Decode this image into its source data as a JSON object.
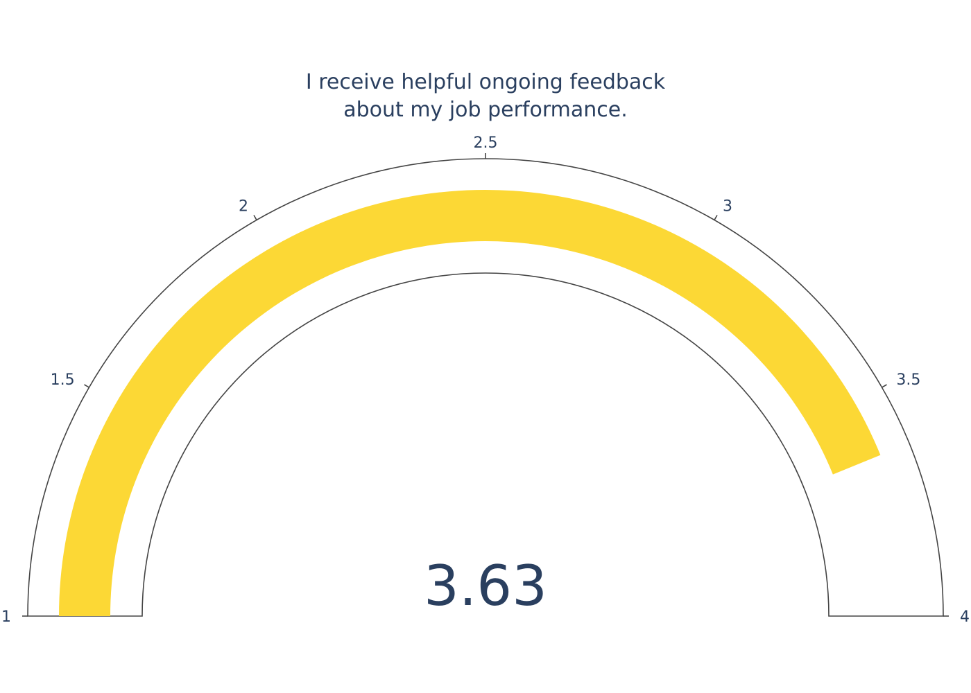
{
  "chart_data": {
    "type": "gauge",
    "title_lines": [
      "I receive helpful ongoing feedback",
      "about my job performance."
    ],
    "value": 3.63,
    "value_text": "3.63",
    "range": [
      1,
      4
    ],
    "ticks": [
      {
        "value": 1,
        "label": "1"
      },
      {
        "value": 1.5,
        "label": "1.5"
      },
      {
        "value": 2,
        "label": "2"
      },
      {
        "value": 2.5,
        "label": "2.5"
      },
      {
        "value": 3,
        "label": "3"
      },
      {
        "value": 3.5,
        "label": "3.5"
      },
      {
        "value": 4,
        "label": "4"
      }
    ],
    "bar_color": "#fcd835",
    "outline_color": "#444444",
    "text_color": "#2a3f5f",
    "background_color": "#ffffff"
  }
}
